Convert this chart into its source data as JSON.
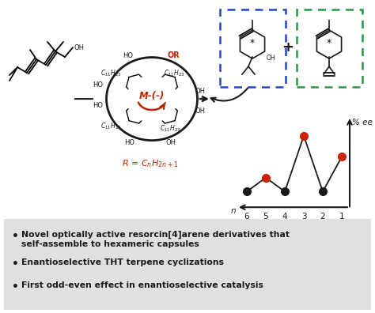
{
  "background_color": "#ffffff",
  "bottom_panel_color": "#e0e0e0",
  "bullet_points": [
    "Novel optically active resorcin[4]arene derivatives that\nself-assemble to hexameric capsules",
    "Enantioselective THT terpene cyclizations",
    "First odd-even effect in enantioselective catalysis"
  ],
  "graph": {
    "x_labels": [
      "6",
      "5",
      "4",
      "3",
      "2",
      "1"
    ],
    "y_values": [
      0.18,
      0.34,
      0.18,
      0.82,
      0.18,
      0.58
    ],
    "dot_colors": [
      "#1a1a1a",
      "#cc2200",
      "#1a1a1a",
      "#cc2200",
      "#1a1a1a",
      "#cc2200"
    ]
  },
  "dashed_box1_color": "#2244cc",
  "dashed_box2_color": "#229944",
  "red_color": "#bb2200",
  "black": "#1a1a1a"
}
